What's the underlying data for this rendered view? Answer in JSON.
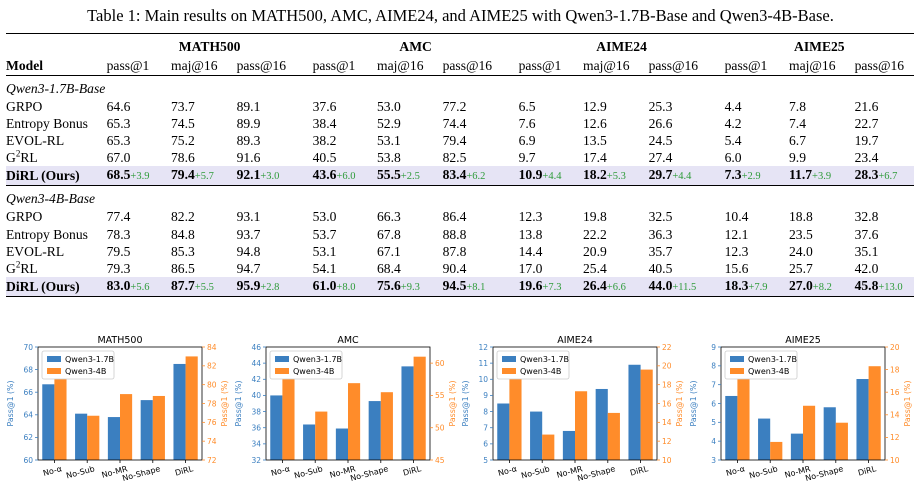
{
  "caption": "Table 1: Main results on MATH500, AMC, AIME24, and AIME25 with Qwen3-1.7B-Base and Qwen3-4B-Base.",
  "table": {
    "model_header": "Model",
    "benchmarks": [
      "MATH500",
      "AMC",
      "AIME24",
      "AIME25"
    ],
    "metrics": [
      "pass@1",
      "maj@16",
      "pass@16"
    ],
    "groups": [
      {
        "name": "Qwen3-1.7B-Base",
        "rows": [
          {
            "model": "GRPO",
            "values": [
              "64.6",
              "73.7",
              "89.1",
              "37.6",
              "53.0",
              "77.2",
              "6.5",
              "12.9",
              "25.3",
              "4.4",
              "7.8",
              "21.6"
            ]
          },
          {
            "model": "Entropy Bonus",
            "values": [
              "65.3",
              "74.5",
              "89.9",
              "38.4",
              "52.9",
              "74.4",
              "7.6",
              "12.6",
              "26.6",
              "4.2",
              "7.4",
              "22.7"
            ]
          },
          {
            "model": "EVOL-RL",
            "values": [
              "65.3",
              "75.2",
              "89.3",
              "38.2",
              "53.1",
              "79.4",
              "6.9",
              "13.5",
              "24.5",
              "5.4",
              "6.7",
              "19.7"
            ]
          },
          {
            "model_pre": "G",
            "model_sup": "2",
            "model_post": "RL",
            "values": [
              "67.0",
              "78.6",
              "91.6",
              "40.5",
              "53.8",
              "82.5",
              "9.7",
              "17.4",
              "27.4",
              "6.0",
              "9.9",
              "23.4"
            ]
          }
        ],
        "ours": {
          "model": "DiRL (Ours)",
          "values": [
            "68.5",
            "79.4",
            "92.1",
            "43.6",
            "55.5",
            "83.4",
            "10.9",
            "18.2",
            "29.7",
            "7.3",
            "11.7",
            "28.3"
          ],
          "gains": [
            "+3.9",
            "+5.7",
            "+3.0",
            "+6.0",
            "+2.5",
            "+6.2",
            "+4.4",
            "+5.3",
            "+4.4",
            "+2.9",
            "+3.9",
            "+6.7"
          ]
        }
      },
      {
        "name": "Qwen3-4B-Base",
        "rows": [
          {
            "model": "GRPO",
            "values": [
              "77.4",
              "82.2",
              "93.1",
              "53.0",
              "66.3",
              "86.4",
              "12.3",
              "19.8",
              "32.5",
              "10.4",
              "18.8",
              "32.8"
            ]
          },
          {
            "model": "Entropy Bonus",
            "values": [
              "78.3",
              "84.8",
              "93.7",
              "53.7",
              "67.8",
              "88.8",
              "13.8",
              "22.2",
              "36.3",
              "12.1",
              "23.5",
              "37.6"
            ]
          },
          {
            "model": "EVOL-RL",
            "values": [
              "79.5",
              "85.3",
              "94.8",
              "53.1",
              "67.1",
              "87.8",
              "14.4",
              "20.9",
              "35.7",
              "12.3",
              "24.0",
              "35.1"
            ]
          },
          {
            "model_pre": "G",
            "model_sup": "2",
            "model_post": "RL",
            "values": [
              "79.3",
              "86.5",
              "94.7",
              "54.1",
              "68.4",
              "90.4",
              "17.0",
              "25.4",
              "40.5",
              "15.6",
              "25.7",
              "42.0"
            ]
          }
        ],
        "ours": {
          "model": "DiRL (Ours)",
          "values": [
            "83.0",
            "87.7",
            "95.9",
            "61.0",
            "75.6",
            "94.5",
            "19.6",
            "26.4",
            "44.0",
            "18.3",
            "27.0",
            "45.8"
          ],
          "gains": [
            "+5.6",
            "+5.5",
            "+2.8",
            "+8.0",
            "+9.3",
            "+8.1",
            "+7.3",
            "+6.6",
            "+11.5",
            "+7.9",
            "+8.2",
            "+13.0"
          ]
        }
      }
    ]
  },
  "colors": {
    "series_a": "#3b7fc0",
    "series_b": "#ff8c2a",
    "gain": "#2e9b3a",
    "highlight_row": "#e6e4f5"
  },
  "chart_data": [
    {
      "type": "bar",
      "title": "MATH500",
      "categories": [
        "No-α",
        "No-Sub",
        "No-MR",
        "No-Shape",
        "DiRL"
      ],
      "ylabel_left": "Pass@1 (%)",
      "ylabel_right": "Pass@1 (%)",
      "ylim_left": [
        60,
        70
      ],
      "yticks_left": [
        60,
        62,
        64,
        66,
        68,
        70
      ],
      "ylim_right": [
        72,
        84
      ],
      "yticks_right": [
        72,
        74,
        76,
        78,
        80,
        82,
        84
      ],
      "legend": "upper-left",
      "series": [
        {
          "name": "Qwen3-1.7B",
          "axis": "left",
          "values": [
            66.7,
            64.1,
            63.8,
            65.3,
            68.5
          ]
        },
        {
          "name": "Qwen3-4B",
          "axis": "right",
          "values": [
            81.1,
            76.7,
            79.0,
            78.8,
            83.0
          ]
        }
      ]
    },
    {
      "type": "bar",
      "title": "AMC",
      "categories": [
        "No-α",
        "No-Sub",
        "No-MR",
        "No-Shape",
        "DiRL"
      ],
      "ylabel_left": "Pass@1 (%)",
      "ylabel_right": "Pass@1 (%)",
      "ylim_left": [
        32,
        46
      ],
      "yticks_left": [
        32,
        34,
        36,
        38,
        40,
        42,
        44,
        46
      ],
      "ylim_right": [
        45,
        62.5
      ],
      "yticks_right": [
        45,
        50,
        55,
        60
      ],
      "legend": "upper-left",
      "series": [
        {
          "name": "Qwen3-1.7B",
          "axis": "left",
          "values": [
            40.0,
            36.4,
            35.9,
            39.3,
            43.6
          ]
        },
        {
          "name": "Qwen3-4B",
          "axis": "right",
          "values": [
            58.0,
            52.5,
            56.9,
            55.5,
            61.0
          ]
        }
      ]
    },
    {
      "type": "bar",
      "title": "AIME24",
      "categories": [
        "No-α",
        "No-Sub",
        "No-MR",
        "No-Shape",
        "DiRL"
      ],
      "ylabel_left": "Pass@1 (%)",
      "ylabel_right": "Pass@1 (%)",
      "ylim_left": [
        5,
        12
      ],
      "yticks_left": [
        5,
        6,
        7,
        8,
        9,
        10,
        11,
        12
      ],
      "ylim_right": [
        10,
        22
      ],
      "yticks_right": [
        10,
        12,
        14,
        16,
        18,
        20,
        22
      ],
      "legend": "upper-left",
      "series": [
        {
          "name": "Qwen3-1.7B",
          "axis": "left",
          "values": [
            8.5,
            8.0,
            6.8,
            9.4,
            10.9
          ]
        },
        {
          "name": "Qwen3-4B",
          "axis": "right",
          "values": [
            18.6,
            12.7,
            17.3,
            15.0,
            19.6
          ]
        }
      ]
    },
    {
      "type": "bar",
      "title": "AIME25",
      "categories": [
        "No-α",
        "No-Sub",
        "No-MR",
        "No-Shape",
        "DiRL"
      ],
      "ylabel_left": "Pass@1 (%)",
      "ylabel_right": "Pass@1 (%)",
      "ylim_left": [
        3,
        9
      ],
      "yticks_left": [
        3,
        4,
        5,
        6,
        7,
        8,
        9
      ],
      "ylim_right": [
        10,
        20
      ],
      "yticks_right": [
        10,
        12,
        14,
        16,
        18,
        20
      ],
      "legend": "upper-left",
      "series": [
        {
          "name": "Qwen3-1.7B",
          "axis": "left",
          "values": [
            6.4,
            5.2,
            4.4,
            5.8,
            7.3
          ]
        },
        {
          "name": "Qwen3-4B",
          "axis": "right",
          "values": [
            17.6,
            11.6,
            14.8,
            13.3,
            18.3
          ]
        }
      ]
    }
  ]
}
